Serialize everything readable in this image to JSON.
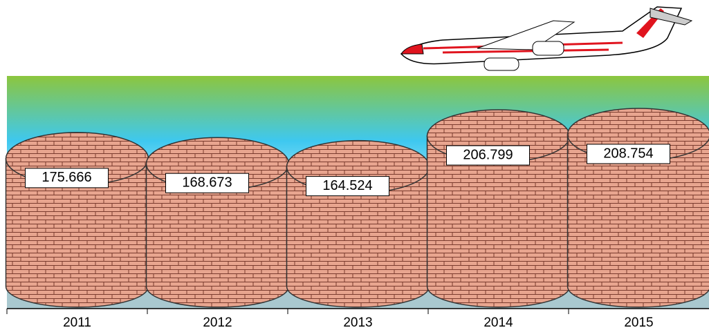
{
  "chart_data": {
    "type": "cylinder",
    "categories": [
      "2011",
      "2012",
      "2013",
      "2014",
      "2015"
    ],
    "values": [
      175.666,
      168.673,
      164.524,
      206.799,
      208.754
    ]
  }
}
